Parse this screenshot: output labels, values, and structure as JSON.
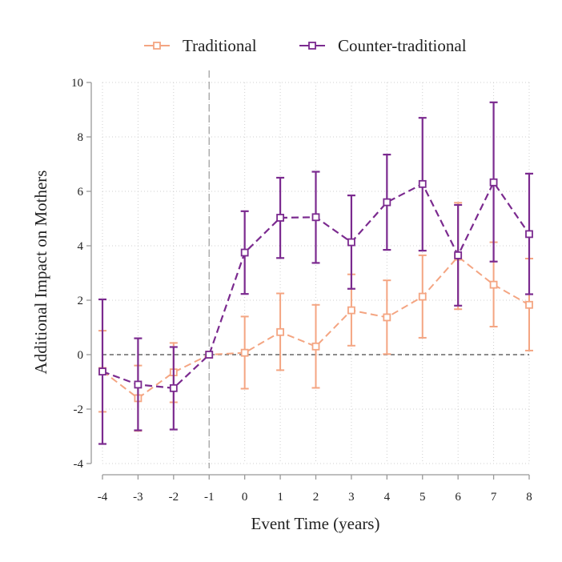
{
  "chart_data": {
    "type": "line",
    "xlabel": "Event Time (years)",
    "ylabel": "Additional Impact on Mothers",
    "x": [
      -4,
      -3,
      -2,
      -1,
      0,
      1,
      2,
      3,
      4,
      5,
      6,
      7,
      8
    ],
    "xlim": [
      -4,
      8
    ],
    "ylim": [
      -4,
      10
    ],
    "yticks": [
      -4,
      -2,
      0,
      2,
      4,
      6,
      8,
      10
    ],
    "reference_lines": {
      "vertical_x": -1,
      "horizontal_y": 0
    },
    "grid": true,
    "legend_position": "top",
    "series": [
      {
        "name": "Traditional",
        "color": "#f4a582",
        "values": [
          -0.6,
          -1.6,
          -0.65,
          0.0,
          0.07,
          0.83,
          0.3,
          1.63,
          1.37,
          2.13,
          3.6,
          2.57,
          1.83
        ],
        "lower": [
          -2.1,
          -2.8,
          -1.75,
          0.0,
          -1.25,
          -0.57,
          -1.22,
          0.33,
          0.02,
          0.62,
          1.67,
          1.03,
          0.15
        ],
        "upper": [
          0.88,
          -0.4,
          0.43,
          0.0,
          1.4,
          2.25,
          1.83,
          2.95,
          2.73,
          3.65,
          5.58,
          4.13,
          3.53
        ]
      },
      {
        "name": "Counter-traditional",
        "color": "#7b2a8f",
        "values": [
          -0.62,
          -1.1,
          -1.23,
          0.0,
          3.75,
          5.03,
          5.05,
          4.13,
          5.6,
          6.27,
          3.65,
          6.33,
          4.43
        ],
        "lower": [
          -3.28,
          -2.78,
          -2.75,
          0.0,
          2.23,
          3.55,
          3.37,
          2.42,
          3.85,
          3.82,
          1.8,
          3.42,
          2.22
        ],
        "upper": [
          2.03,
          0.6,
          0.28,
          0.0,
          5.27,
          6.5,
          6.72,
          5.85,
          7.35,
          8.7,
          5.5,
          9.27,
          6.65
        ]
      }
    ]
  }
}
